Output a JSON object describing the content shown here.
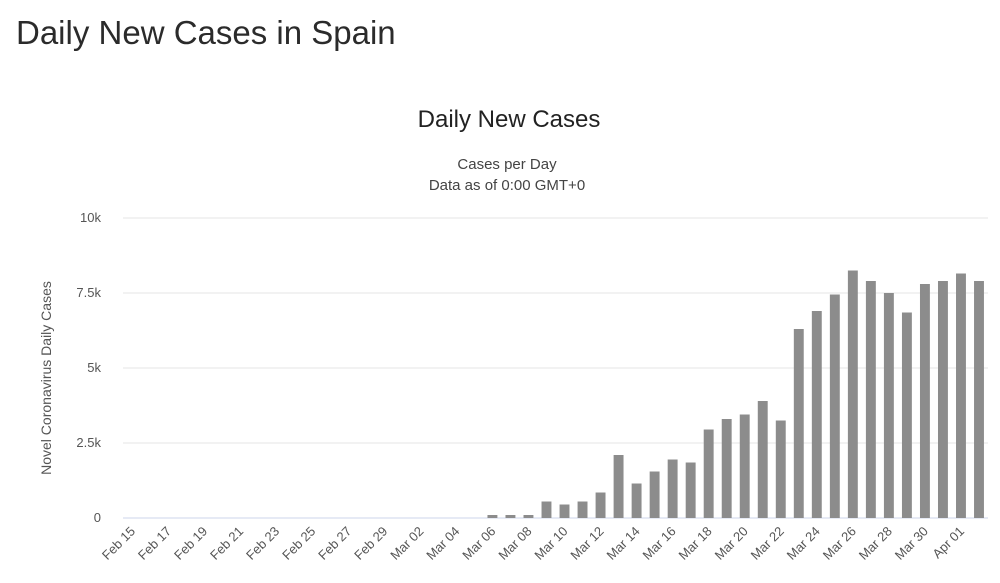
{
  "page": {
    "heading": "Daily New Cases in Spain"
  },
  "chart_data": {
    "type": "bar",
    "title": "Daily New Cases",
    "subtitle_lines": [
      "Cases per Day",
      "Data as of 0:00 GMT+0"
    ],
    "xlabel": "",
    "ylabel": "Novel Coronavirus Daily Cases",
    "ylim": [
      0,
      10000
    ],
    "y_ticks": [
      0,
      2500,
      5000,
      7500,
      10000
    ],
    "y_tick_labels": [
      "0",
      "2.5k",
      "5k",
      "7.5k",
      "10k"
    ],
    "grid": true,
    "bar_color": "#8c8c8c",
    "categories": [
      "Feb 15",
      "Feb 16",
      "Feb 17",
      "Feb 18",
      "Feb 19",
      "Feb 20",
      "Feb 21",
      "Feb 22",
      "Feb 23",
      "Feb 24",
      "Feb 25",
      "Feb 26",
      "Feb 27",
      "Feb 28",
      "Feb 29",
      "Mar 01",
      "Mar 02",
      "Mar 03",
      "Mar 04",
      "Mar 05",
      "Mar 06",
      "Mar 07",
      "Mar 08",
      "Mar 09",
      "Mar 10",
      "Mar 11",
      "Mar 12",
      "Mar 13",
      "Mar 14",
      "Mar 15",
      "Mar 16",
      "Mar 17",
      "Mar 18",
      "Mar 19",
      "Mar 20",
      "Mar 21",
      "Mar 22",
      "Mar 23",
      "Mar 24",
      "Mar 25",
      "Mar 26",
      "Mar 27",
      "Mar 28",
      "Mar 29",
      "Mar 30",
      "Mar 31",
      "Apr 01",
      "Apr 02"
    ],
    "x_tick_labels": [
      "Feb 15",
      "Feb 17",
      "Feb 19",
      "Feb 21",
      "Feb 23",
      "Feb 25",
      "Feb 27",
      "Feb 29",
      "Mar 02",
      "Mar 04",
      "Mar 06",
      "Mar 08",
      "Mar 10",
      "Mar 12",
      "Mar 14",
      "Mar 16",
      "Mar 18",
      "Mar 20",
      "Mar 22",
      "Mar 24",
      "Mar 26",
      "Mar 28",
      "Mar 30",
      "Apr 01"
    ],
    "values": [
      0,
      0,
      0,
      0,
      0,
      0,
      0,
      0,
      0,
      0,
      0,
      0,
      0,
      0,
      0,
      0,
      0,
      0,
      0,
      0,
      100,
      100,
      100,
      550,
      450,
      550,
      850,
      2100,
      1150,
      1550,
      1950,
      1850,
      2950,
      3300,
      3450,
      3900,
      3250,
      6300,
      6900,
      7450,
      8250,
      7900,
      7500,
      6850,
      7800,
      7900,
      8150,
      7900
    ]
  }
}
